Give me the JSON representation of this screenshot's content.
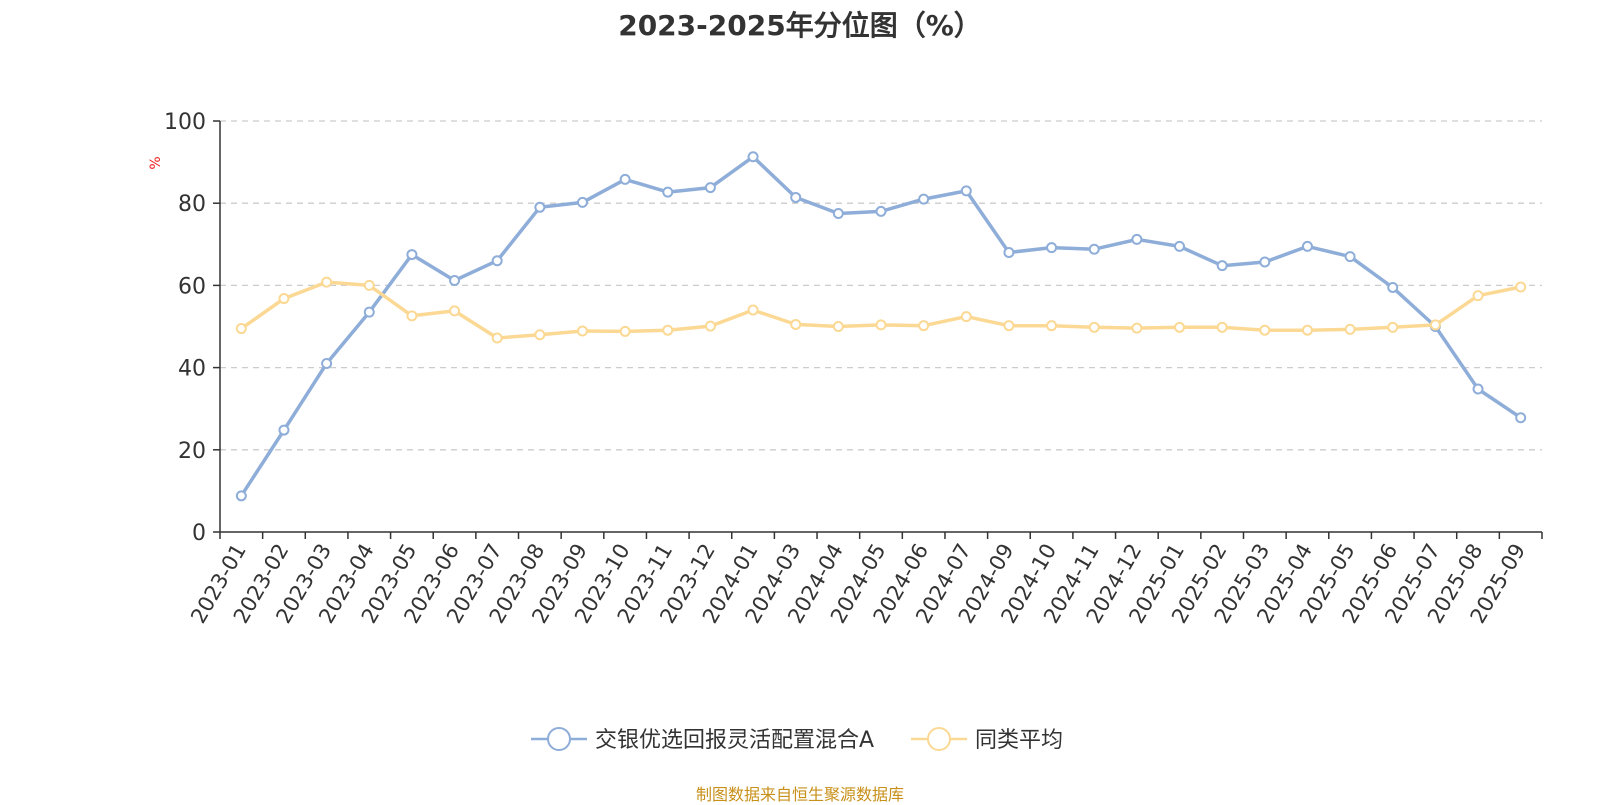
{
  "chart_data": {
    "type": "line",
    "title": "2023-2025年分位图（%）",
    "ylabel": "%",
    "xlabel": "",
    "ylim": [
      0,
      100
    ],
    "yticks": [
      0,
      20,
      40,
      60,
      80,
      100
    ],
    "grid": true,
    "legend_position": "bottom-center",
    "categories": [
      "2023-01",
      "2023-02",
      "2023-03",
      "2023-04",
      "2023-05",
      "2023-06",
      "2023-07",
      "2023-08",
      "2023-09",
      "2023-10",
      "2023-11",
      "2023-12",
      "2024-01",
      "2024-03",
      "2024-04",
      "2024-05",
      "2024-06",
      "2024-07",
      "2024-09",
      "2024-10",
      "2024-11",
      "2024-12",
      "2025-01",
      "2025-02",
      "2025-03",
      "2025-04",
      "2025-05",
      "2025-06",
      "2025-07",
      "2025-08",
      "2025-09"
    ],
    "series": [
      {
        "name": "交银优选回报灵活配置混合A",
        "color": "#8eadd8",
        "values": [
          8.8,
          24.8,
          41.0,
          53.5,
          67.5,
          61.2,
          66.0,
          79.0,
          80.2,
          85.8,
          82.7,
          83.8,
          91.3,
          81.4,
          77.5,
          78.0,
          81.0,
          83.0,
          68.0,
          69.2,
          68.8,
          71.2,
          69.5,
          64.8,
          65.7,
          69.5,
          67.0,
          59.5,
          50.0,
          34.8,
          27.8
        ]
      },
      {
        "name": "同类平均",
        "color": "#fbd994",
        "values": [
          49.5,
          56.8,
          60.8,
          60.0,
          52.6,
          53.8,
          47.2,
          48.0,
          48.9,
          48.8,
          49.1,
          50.1,
          54.0,
          50.5,
          50.0,
          50.4,
          50.2,
          52.4,
          50.2,
          50.2,
          49.8,
          49.6,
          49.8,
          49.8,
          49.1,
          49.1,
          49.3,
          49.8,
          50.4,
          57.5,
          59.6
        ]
      }
    ],
    "source": "制图数据来自恒生聚源数据库"
  }
}
